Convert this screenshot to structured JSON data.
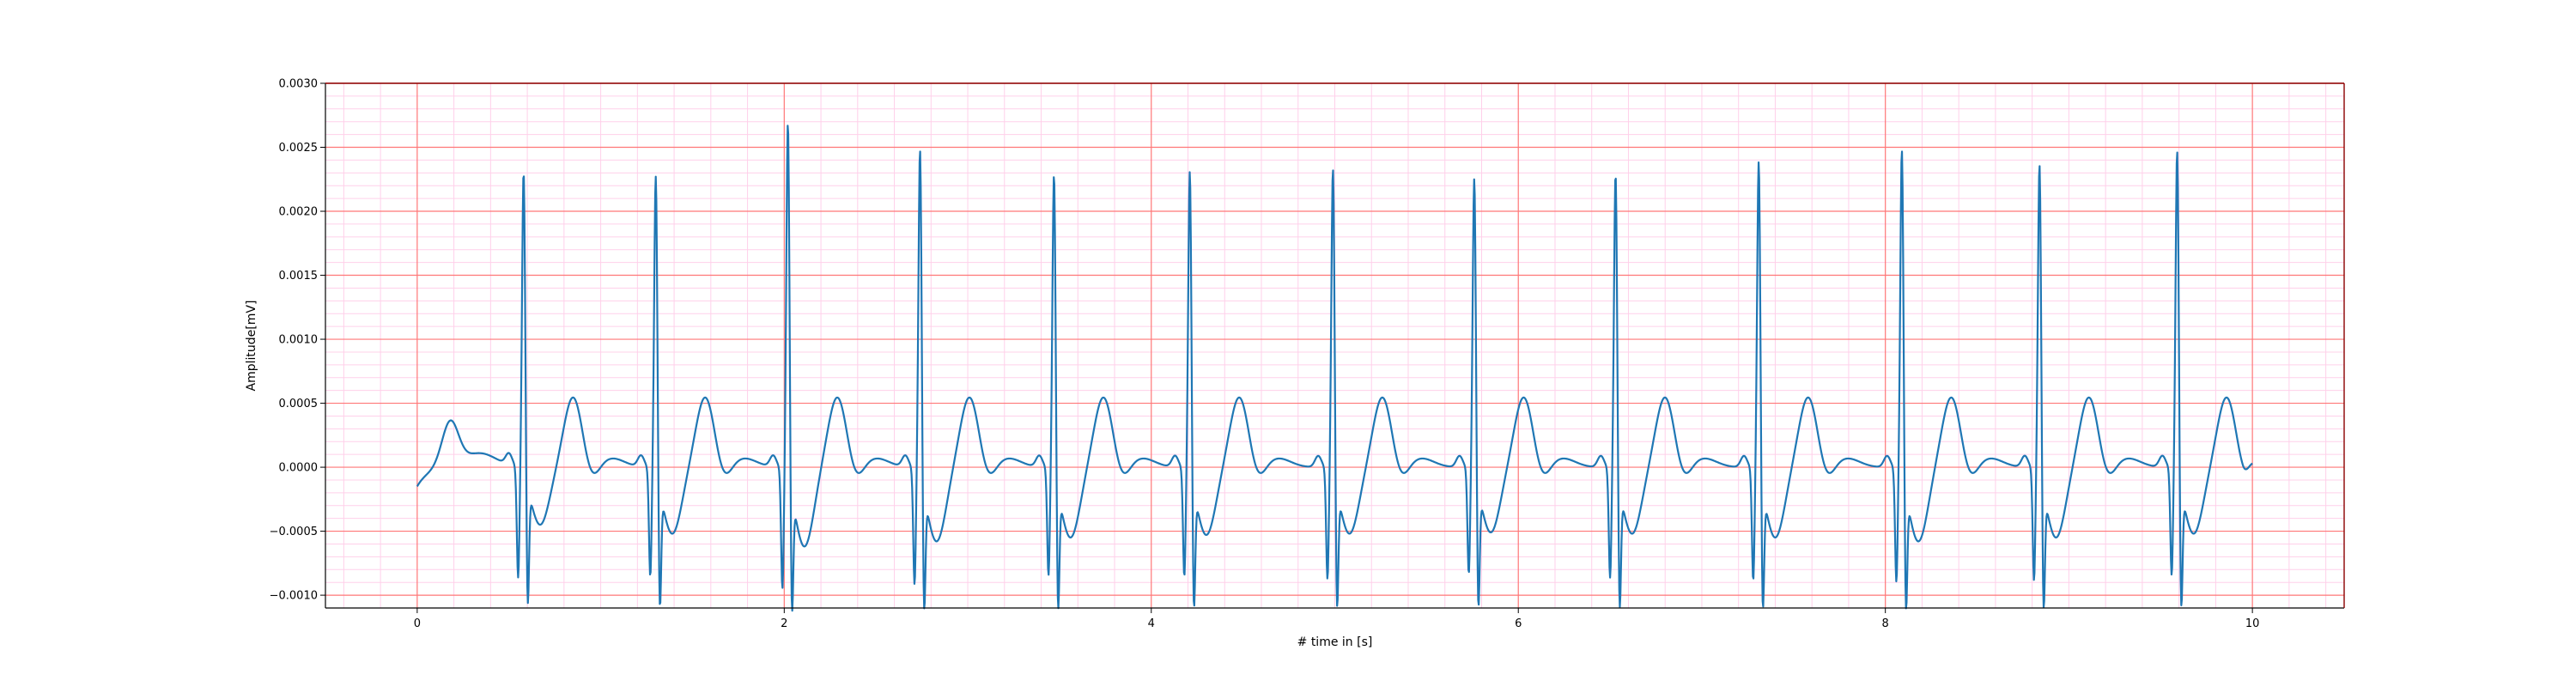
{
  "chart_data": {
    "type": "line",
    "title": "",
    "xlabel": "# time in [s]",
    "ylabel": "Amplitude[mV]",
    "xlim": [
      -0.5,
      10.5
    ],
    "ylim": [
      -0.0011,
      0.003
    ],
    "x_ticks": [
      0,
      2,
      4,
      6,
      8,
      10
    ],
    "x_tick_labels": [
      "0",
      "2",
      "4",
      "6",
      "8",
      "10"
    ],
    "y_ticks": [
      -0.001,
      -0.0005,
      0.0,
      0.0005,
      0.001,
      0.0015,
      0.002,
      0.0025,
      0.003
    ],
    "y_tick_labels": [
      "−0.0010",
      "−0.0005",
      "0.0000",
      "0.0005",
      "0.0010",
      "0.0015",
      "0.0020",
      "0.0025",
      "0.0030"
    ],
    "grid": "major red, minor pink",
    "colors": {
      "line": "#1f77b4",
      "major_grid": "#ff7777",
      "minor_grid": "#ffd0ea",
      "spine_top_right": "#8b0000"
    },
    "series": [
      {
        "beats": [
          {
            "t": 0.58,
            "r": 0.0024,
            "q": -0.00085,
            "s": -0.00045
          },
          {
            "t": 1.3,
            "r": 0.00238,
            "q": -0.00083,
            "s": -0.00052
          },
          {
            "t": 2.02,
            "r": 0.00282,
            "q": -0.00092,
            "s": -0.00062
          },
          {
            "t": 2.74,
            "r": 0.0026,
            "q": -0.00089,
            "s": -0.00058
          },
          {
            "t": 3.47,
            "r": 0.0024,
            "q": -0.00082,
            "s": -0.00055
          },
          {
            "t": 4.21,
            "r": 0.00242,
            "q": -0.00083,
            "s": -0.00053
          },
          {
            "t": 4.99,
            "r": 0.00244,
            "q": -0.00085,
            "s": -0.00052
          },
          {
            "t": 5.76,
            "r": 0.00236,
            "q": -0.00081,
            "s": -0.00051
          },
          {
            "t": 6.53,
            "r": 0.0024,
            "q": -0.00084,
            "s": -0.00052
          },
          {
            "t": 7.31,
            "r": 0.0025,
            "q": -0.00086,
            "s": -0.00055
          },
          {
            "t": 8.09,
            "r": 0.0026,
            "q": -0.00087,
            "s": -0.00058
          },
          {
            "t": 8.84,
            "r": 0.00248,
            "q": -0.00086,
            "s": -0.00055
          },
          {
            "t": 9.59,
            "r": 0.00258,
            "q": -0.00082,
            "s": -0.00052
          }
        ],
        "start": {
          "t": 0.0,
          "value": -0.00015
        },
        "initial_t_wave": {
          "t": 0.18,
          "value": 0.00035
        },
        "end": {
          "t": 10.0,
          "value": 3e-05
        }
      }
    ]
  }
}
